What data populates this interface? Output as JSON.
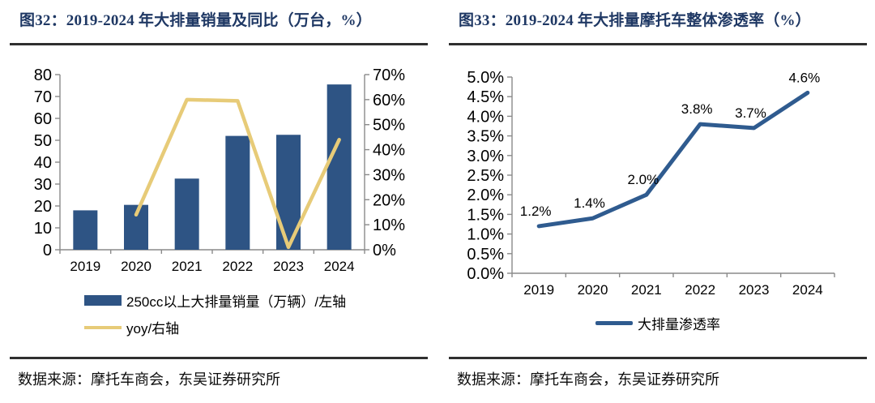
{
  "colors": {
    "title_navy": "#1F3864",
    "bar_blue": "#2E5484",
    "yoy_yellow": "#E7CB78",
    "line_blue": "#2F5B8F",
    "axis_gray": "#8a8a8a",
    "rule_dark": "#2f2f2f",
    "text_black": "#000000"
  },
  "left_panel": {
    "title": "图32：2019-2024 年大排量销量及同比（万台，%）",
    "legend": [
      {
        "label": "250cc以上大排量销量（万辆）/左轴"
      },
      {
        "label": "yoy/右轴"
      }
    ],
    "source": "数据来源：摩托车商会，东吴证券研究所"
  },
  "right_panel": {
    "title": "图33：2019-2024 年大排量摩托车整体渗透率（%）",
    "legend": [
      {
        "label": "大排量渗透率"
      }
    ],
    "source": "数据来源：摩托车商会，东吴证券研究所"
  },
  "chart_data": [
    {
      "type": "bar",
      "subtype": "combo_bar_line",
      "title": "2019-2024 年大排量销量及同比（万台，%）",
      "categories": [
        "2019",
        "2020",
        "2021",
        "2022",
        "2023",
        "2024"
      ],
      "series": [
        {
          "name": "250cc以上大排量销量（万辆）/左轴",
          "type": "bar",
          "axis": "left",
          "values": [
            18,
            20.5,
            32.5,
            52,
            52.5,
            75.5
          ]
        },
        {
          "name": "yoy/右轴",
          "type": "line",
          "axis": "right",
          "values": [
            null,
            14,
            60,
            59.5,
            1,
            44
          ]
        }
      ],
      "left_axis": {
        "min": 0,
        "max": 80,
        "step": 10,
        "suffix": ""
      },
      "right_axis": {
        "min": 0,
        "max": 70,
        "step": 10,
        "suffix": "%"
      },
      "grid": false,
      "legend_position": "bottom-left"
    },
    {
      "type": "line",
      "title": "2019-2024 年大排量摩托车整体渗透率（%）",
      "categories": [
        "2019",
        "2020",
        "2021",
        "2022",
        "2023",
        "2024"
      ],
      "series": [
        {
          "name": "大排量渗透率",
          "values": [
            1.2,
            1.4,
            2.0,
            3.8,
            3.7,
            4.6
          ]
        }
      ],
      "point_labels": [
        "1.2%",
        "1.4%",
        "2.0%",
        "3.8%",
        "3.7%",
        "4.6%"
      ],
      "y_axis": {
        "min": 0,
        "max": 5,
        "step": 0.5,
        "decimals": 1,
        "suffix": "%"
      },
      "grid": false,
      "legend_position": "bottom-center"
    }
  ]
}
